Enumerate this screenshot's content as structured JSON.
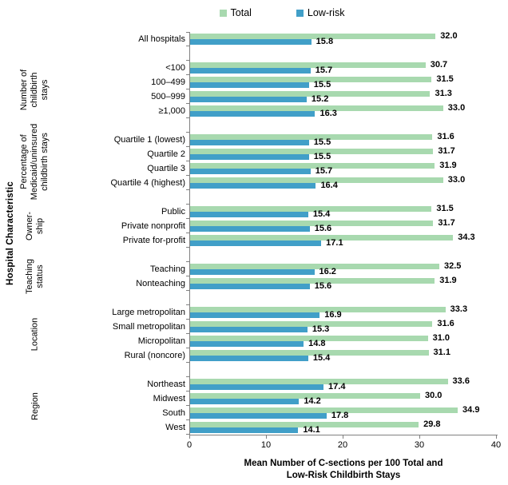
{
  "legend": {
    "items": [
      {
        "label": "Total",
        "color": "#a8d9af"
      },
      {
        "label": "Low-risk",
        "color": "#419fc8"
      }
    ]
  },
  "y_axis_title": "Hospital Characteristic",
  "x_axis_title_line1": "Mean Number of C-sections per 100 Total and",
  "x_axis_title_line2": "Low-Risk Childbirth Stays",
  "x_ticks": [
    "0",
    "10",
    "20",
    "30",
    "40"
  ],
  "colors": {
    "axis": "#808080",
    "text": "#000000",
    "background": "#ffffff"
  },
  "chart_data": {
    "type": "bar",
    "orientation": "horizontal",
    "title": "",
    "xlabel": "Mean Number of C-sections per 100 Total and Low-Risk Childbirth Stays",
    "ylabel": "Hospital Characteristic",
    "xlim": [
      0,
      40
    ],
    "xticks": [
      0,
      10,
      20,
      30,
      40
    ],
    "grid": false,
    "legend_position": "top",
    "legend": [
      "Total",
      "Low-risk"
    ],
    "colors": {
      "total": "#a8d9af",
      "low_risk": "#419fc8"
    },
    "groups": [
      {
        "label_lines": [],
        "rows": [
          {
            "category": "All hospitals",
            "total": 32.0,
            "low_risk": 15.8
          }
        ]
      },
      {
        "label_lines": [
          "Number of",
          "childbirth",
          "stays"
        ],
        "rows": [
          {
            "category": "<100",
            "total": 30.7,
            "low_risk": 15.7
          },
          {
            "category": "100–499",
            "total": 31.5,
            "low_risk": 15.5
          },
          {
            "category": "500–999",
            "total": 31.3,
            "low_risk": 15.2
          },
          {
            "category": "≥1,000",
            "total": 33.0,
            "low_risk": 16.3
          }
        ]
      },
      {
        "label_lines": [
          "Percentage of",
          "Medicaid/uninsured",
          "childbirth stays"
        ],
        "rows": [
          {
            "category": "Quartile 1 (lowest)",
            "total": 31.6,
            "low_risk": 15.5
          },
          {
            "category": "Quartile 2",
            "total": 31.7,
            "low_risk": 15.5
          },
          {
            "category": "Quartile 3",
            "total": 31.9,
            "low_risk": 15.7
          },
          {
            "category": "Quartile 4 (highest)",
            "total": 33.0,
            "low_risk": 16.4
          }
        ]
      },
      {
        "label_lines": [
          "Owner-",
          "ship"
        ],
        "rows": [
          {
            "category": "Public",
            "total": 31.5,
            "low_risk": 15.4
          },
          {
            "category": "Private nonprofit",
            "total": 31.7,
            "low_risk": 15.6
          },
          {
            "category": "Private for-profit",
            "total": 34.3,
            "low_risk": 17.1
          }
        ]
      },
      {
        "label_lines": [
          "Teaching",
          "status"
        ],
        "rows": [
          {
            "category": "Teaching",
            "total": 32.5,
            "low_risk": 16.2
          },
          {
            "category": "Nonteaching",
            "total": 31.9,
            "low_risk": 15.6
          }
        ]
      },
      {
        "label_lines": [
          "Location"
        ],
        "rows": [
          {
            "category": "Large metropolitan",
            "total": 33.3,
            "low_risk": 16.9
          },
          {
            "category": "Small metropolitan",
            "total": 31.6,
            "low_risk": 15.3
          },
          {
            "category": "Micropolitan",
            "total": 31.0,
            "low_risk": 14.8
          },
          {
            "category": "Rural (noncore)",
            "total": 31.1,
            "low_risk": 15.4
          }
        ]
      },
      {
        "label_lines": [
          "Region"
        ],
        "rows": [
          {
            "category": "Northeast",
            "total": 33.6,
            "low_risk": 17.4
          },
          {
            "category": "Midwest",
            "total": 30.0,
            "low_risk": 14.2
          },
          {
            "category": "South",
            "total": 34.9,
            "low_risk": 17.8
          },
          {
            "category": "West",
            "total": 29.8,
            "low_risk": 14.1
          }
        ]
      }
    ]
  }
}
